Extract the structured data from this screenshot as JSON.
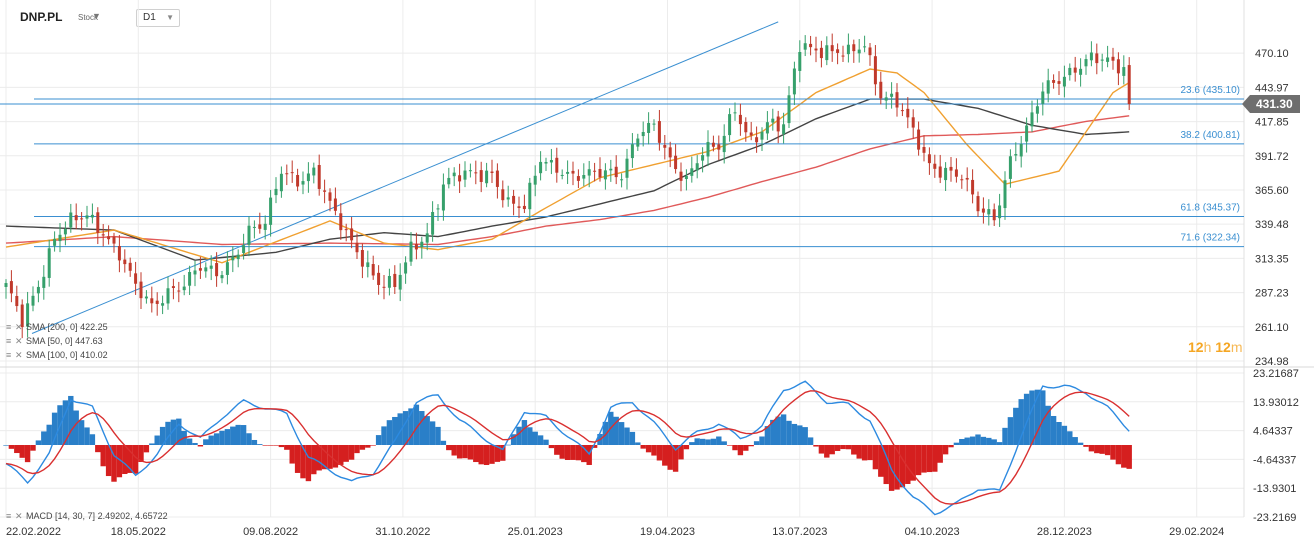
{
  "header": {
    "symbol": "DNP.PL",
    "symbol_type": "Stock",
    "timeframe": "D1"
  },
  "brand": {
    "num1": "12",
    "unit1": "h",
    "num2": "12",
    "unit2": "m"
  },
  "colors": {
    "bull": "#36a06b",
    "bear": "#c0392b",
    "grid": "#ececec",
    "fib": "#3a8fd1",
    "sma50": "#f0a030",
    "sma100": "#444444",
    "sma200": "#e05a5a",
    "macd": "#2d8ae0",
    "signal": "#d93030",
    "hist_pos": "#2a7fc8",
    "hist_neg": "#d51f1f"
  },
  "indicators": [
    {
      "name": "SMA",
      "params": "[200,  0]",
      "value": "422.25"
    },
    {
      "name": "SMA",
      "params": "[50,  0]",
      "value": "447.63"
    },
    {
      "name": "SMA",
      "params": "[100,  0]",
      "value": "410.02"
    }
  ],
  "macd_legend": {
    "name": "MACD",
    "params": "[14,  30,  7]",
    "value1": "2.49202",
    "value2": "4.65722"
  },
  "chart_data": {
    "type": "candlestick",
    "x_ticks": [
      "22.02.2022",
      "18.05.2022",
      "09.08.2022",
      "31.10.2022",
      "25.01.2023",
      "19.04.2023",
      "13.07.2023",
      "04.10.2023",
      "28.12.2023",
      "29.02.2024"
    ],
    "price_axis": {
      "ticks": [
        470.1,
        443.97,
        417.85,
        391.72,
        365.6,
        339.48,
        313.35,
        287.23,
        261.1,
        234.98
      ],
      "range": [
        234.98,
        496.2
      ]
    },
    "last_price": 431.3,
    "fib_levels": [
      {
        "label": "23.6 (435.10)",
        "value": 435.1
      },
      {
        "label": "38.2 (400.81)",
        "value": 400.81
      },
      {
        "label": "61.8 (345.37)",
        "value": 345.37
      },
      {
        "label": "71.6 (322.34)",
        "value": 322.34
      }
    ],
    "trendline": {
      "from": [
        "22.02.2022",
        256
      ],
      "to": [
        "19.05.2023 approx",
        494
      ]
    },
    "close_anchors": [
      [
        0,
        290
      ],
      [
        3,
        265
      ],
      [
        6,
        295
      ],
      [
        9,
        330
      ],
      [
        12,
        340
      ],
      [
        15,
        345
      ],
      [
        18,
        335
      ],
      [
        21,
        318
      ],
      [
        24,
        290
      ],
      [
        27,
        275
      ],
      [
        30,
        290
      ],
      [
        33,
        295
      ],
      [
        36,
        305
      ],
      [
        39,
        300
      ],
      [
        42,
        315
      ],
      [
        45,
        335
      ],
      [
        48,
        338
      ],
      [
        51,
        380
      ],
      [
        54,
        375
      ],
      [
        57,
        380
      ],
      [
        60,
        352
      ],
      [
        63,
        332
      ],
      [
        66,
        315
      ],
      [
        69,
        295
      ],
      [
        72,
        290
      ],
      [
        75,
        320
      ],
      [
        78,
        335
      ],
      [
        81,
        370
      ],
      [
        84,
        375
      ],
      [
        87,
        378
      ],
      [
        90,
        380
      ],
      [
        93,
        355
      ],
      [
        96,
        350
      ],
      [
        99,
        390
      ],
      [
        102,
        385
      ],
      [
        105,
        375
      ],
      [
        108,
        375
      ],
      [
        111,
        380
      ],
      [
        114,
        380
      ],
      [
        117,
        408
      ],
      [
        120,
        412
      ],
      [
        123,
        388
      ],
      [
        126,
        376
      ],
      [
        129,
        395
      ],
      [
        132,
        396
      ],
      [
        135,
        428
      ],
      [
        138,
        405
      ],
      [
        141,
        415
      ],
      [
        144,
        412
      ],
      [
        147,
        478
      ],
      [
        150,
        475
      ],
      [
        153,
        470
      ],
      [
        156,
        468
      ],
      [
        159,
        478
      ],
      [
        162,
        440
      ],
      [
        165,
        432
      ],
      [
        168,
        408
      ],
      [
        171,
        385
      ],
      [
        174,
        382
      ],
      [
        177,
        375
      ],
      [
        180,
        350
      ],
      [
        183,
        345
      ],
      [
        186,
        390
      ],
      [
        189,
        410
      ],
      [
        192,
        440
      ],
      [
        195,
        452
      ],
      [
        198,
        460
      ],
      [
        201,
        465
      ],
      [
        204,
        462
      ],
      [
        207,
        460
      ],
      [
        208,
        431.3
      ]
    ],
    "sma": {
      "sma50": [
        [
          0,
          322
        ],
        [
          20,
          335
        ],
        [
          40,
          310
        ],
        [
          60,
          342
        ],
        [
          70,
          325
        ],
        [
          80,
          320
        ],
        [
          90,
          328
        ],
        [
          100,
          352
        ],
        [
          110,
          375
        ],
        [
          120,
          385
        ],
        [
          130,
          395
        ],
        [
          140,
          410
        ],
        [
          150,
          440
        ],
        [
          160,
          458
        ],
        [
          165,
          455
        ],
        [
          170,
          440
        ],
        [
          178,
          400
        ],
        [
          185,
          370
        ],
        [
          195,
          380
        ],
        [
          205,
          440
        ],
        [
          208,
          447.63
        ]
      ],
      "sma100": [
        [
          0,
          338
        ],
        [
          20,
          335
        ],
        [
          35,
          312
        ],
        [
          50,
          318
        ],
        [
          60,
          328
        ],
        [
          70,
          333
        ],
        [
          80,
          330
        ],
        [
          90,
          338
        ],
        [
          100,
          345
        ],
        [
          110,
          355
        ],
        [
          120,
          365
        ],
        [
          130,
          385
        ],
        [
          140,
          400
        ],
        [
          150,
          420
        ],
        [
          160,
          435
        ],
        [
          170,
          435
        ],
        [
          180,
          428
        ],
        [
          190,
          415
        ],
        [
          200,
          408
        ],
        [
          208,
          410.02
        ]
      ],
      "sma200": [
        [
          0,
          325
        ],
        [
          20,
          330
        ],
        [
          40,
          324
        ],
        [
          60,
          325
        ],
        [
          80,
          324
        ],
        [
          90,
          330
        ],
        [
          100,
          338
        ],
        [
          110,
          343
        ],
        [
          120,
          350
        ],
        [
          130,
          360
        ],
        [
          140,
          372
        ],
        [
          150,
          383
        ],
        [
          160,
          397
        ],
        [
          170,
          407
        ],
        [
          180,
          408
        ],
        [
          190,
          410
        ],
        [
          200,
          418
        ],
        [
          208,
          422.25
        ]
      ]
    },
    "macd_axis": {
      "ticks": [
        23.21687,
        13.93012,
        4.64337,
        -4.64337,
        -13.9301,
        -23.2169
      ],
      "range": [
        -23.2169,
        23.21687
      ]
    },
    "macd_anchors": [
      [
        0,
        -6
      ],
      [
        4,
        -12
      ],
      [
        8,
        -3
      ],
      [
        12,
        15
      ],
      [
        16,
        12
      ],
      [
        20,
        -3
      ],
      [
        24,
        -10
      ],
      [
        28,
        -3
      ],
      [
        32,
        7
      ],
      [
        36,
        2
      ],
      [
        40,
        9
      ],
      [
        44,
        14
      ],
      [
        48,
        12
      ],
      [
        52,
        10
      ],
      [
        56,
        -4
      ],
      [
        60,
        -8
      ],
      [
        64,
        -12
      ],
      [
        68,
        -9
      ],
      [
        72,
        1
      ],
      [
        76,
        14
      ],
      [
        80,
        16
      ],
      [
        84,
        8
      ],
      [
        88,
        3
      ],
      [
        92,
        -2
      ],
      [
        96,
        11
      ],
      [
        100,
        9
      ],
      [
        104,
        3
      ],
      [
        108,
        -3
      ],
      [
        112,
        12
      ],
      [
        116,
        14
      ],
      [
        120,
        7
      ],
      [
        124,
        -1
      ],
      [
        128,
        4
      ],
      [
        132,
        7
      ],
      [
        136,
        2
      ],
      [
        140,
        6
      ],
      [
        144,
        18
      ],
      [
        148,
        20
      ],
      [
        152,
        14
      ],
      [
        156,
        13
      ],
      [
        160,
        8
      ],
      [
        164,
        -8
      ],
      [
        168,
        -17
      ],
      [
        172,
        -22
      ],
      [
        176,
        -19
      ],
      [
        180,
        -14
      ],
      [
        184,
        -15
      ],
      [
        188,
        3
      ],
      [
        192,
        19
      ],
      [
        196,
        19
      ],
      [
        200,
        17
      ],
      [
        204,
        12
      ],
      [
        208,
        5
      ]
    ]
  }
}
